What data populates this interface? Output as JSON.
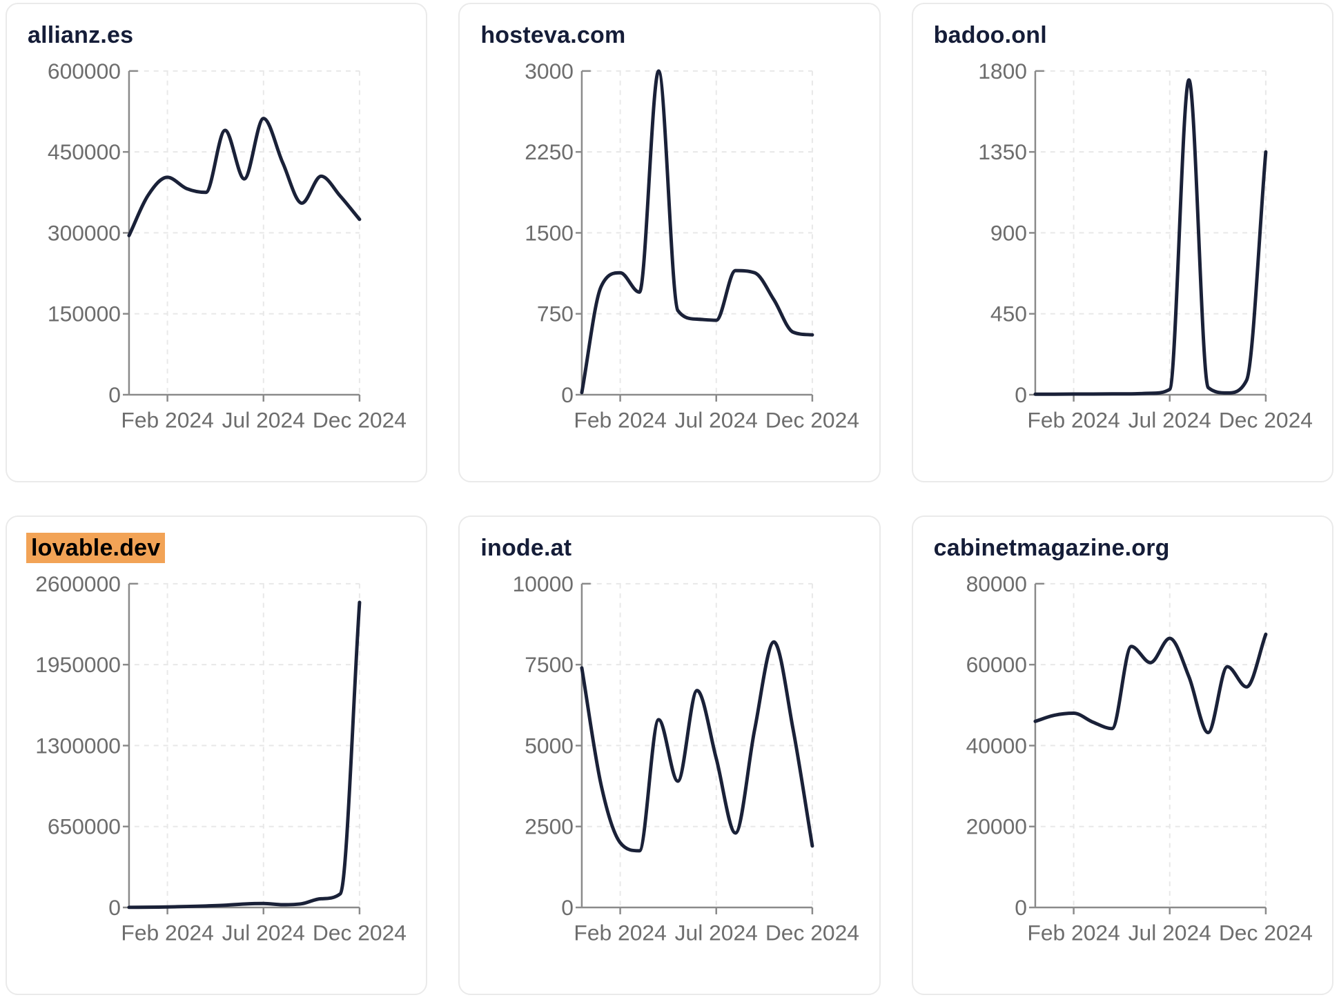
{
  "colors": {
    "line": "#1a2138",
    "title": "#151d38",
    "highlight_bg": "#f2a356",
    "highlight_text": "#000000",
    "axis": "#8a8a8a",
    "tick_label": "#6d6d6d",
    "gridline": "#e8e8e8",
    "card_border": "#eaeaea",
    "background": "#ffffff"
  },
  "x_ticks": [
    "Feb 2024",
    "Jul 2024",
    "Dec 2024"
  ],
  "chart_data": [
    {
      "type": "line",
      "title": "allianz.es",
      "title_highlighted": false,
      "ylim": [
        0,
        600000
      ],
      "y_ticks": [
        600000,
        450000,
        300000,
        150000,
        0
      ],
      "x_tick_labels": [
        "Feb 2024",
        "Jul 2024",
        "Dec 2024"
      ],
      "values": [
        295000,
        370000,
        403000,
        382000,
        375000,
        490000,
        400000,
        512000,
        430000,
        355000,
        405000,
        368000,
        325000
      ]
    },
    {
      "type": "line",
      "title": "hosteva.com",
      "title_highlighted": false,
      "ylim": [
        0,
        3000
      ],
      "y_ticks": [
        3000,
        2250,
        1500,
        750,
        0
      ],
      "x_tick_labels": [
        "Feb 2024",
        "Jul 2024",
        "Dec 2024"
      ],
      "values": [
        20,
        1000,
        1130,
        950,
        3000,
        780,
        700,
        690,
        1150,
        1130,
        880,
        580,
        555
      ]
    },
    {
      "type": "line",
      "title": "badoo.onl",
      "title_highlighted": false,
      "ylim": [
        0,
        1800
      ],
      "y_ticks": [
        1800,
        1350,
        900,
        450,
        0
      ],
      "x_tick_labels": [
        "Feb 2024",
        "Jul 2024",
        "Dec 2024"
      ],
      "values": [
        3,
        3,
        4,
        4,
        5,
        5,
        8,
        30,
        1750,
        40,
        10,
        80,
        1350
      ]
    },
    {
      "type": "line",
      "title": "lovable.dev",
      "title_highlighted": true,
      "ylim": [
        0,
        2600000
      ],
      "y_ticks": [
        2600000,
        1950000,
        1300000,
        650000,
        0
      ],
      "x_tick_labels": [
        "Feb 2024",
        "Jul 2024",
        "Dec 2024"
      ],
      "values": [
        1000,
        2000,
        4000,
        8000,
        12000,
        18000,
        28000,
        32000,
        22000,
        30000,
        70000,
        110000,
        2450000
      ]
    },
    {
      "type": "line",
      "title": "inode.at",
      "title_highlighted": false,
      "ylim": [
        0,
        10000
      ],
      "y_ticks": [
        10000,
        7500,
        5000,
        2500,
        0
      ],
      "x_tick_labels": [
        "Feb 2024",
        "Jul 2024",
        "Dec 2024"
      ],
      "values": [
        7400,
        3800,
        2000,
        1750,
        5800,
        3900,
        6700,
        4600,
        2300,
        5500,
        8200,
        5500,
        1900
      ]
    },
    {
      "type": "line",
      "title": "cabinetmagazine.org",
      "title_highlighted": false,
      "ylim": [
        0,
        80000
      ],
      "y_ticks": [
        80000,
        60000,
        40000,
        20000,
        0
      ],
      "x_tick_labels": [
        "Feb 2024",
        "Jul 2024",
        "Dec 2024"
      ],
      "values": [
        46000,
        47500,
        48000,
        45800,
        44200,
        64500,
        60500,
        66500,
        57000,
        43200,
        59500,
        54500,
        67500
      ]
    }
  ]
}
